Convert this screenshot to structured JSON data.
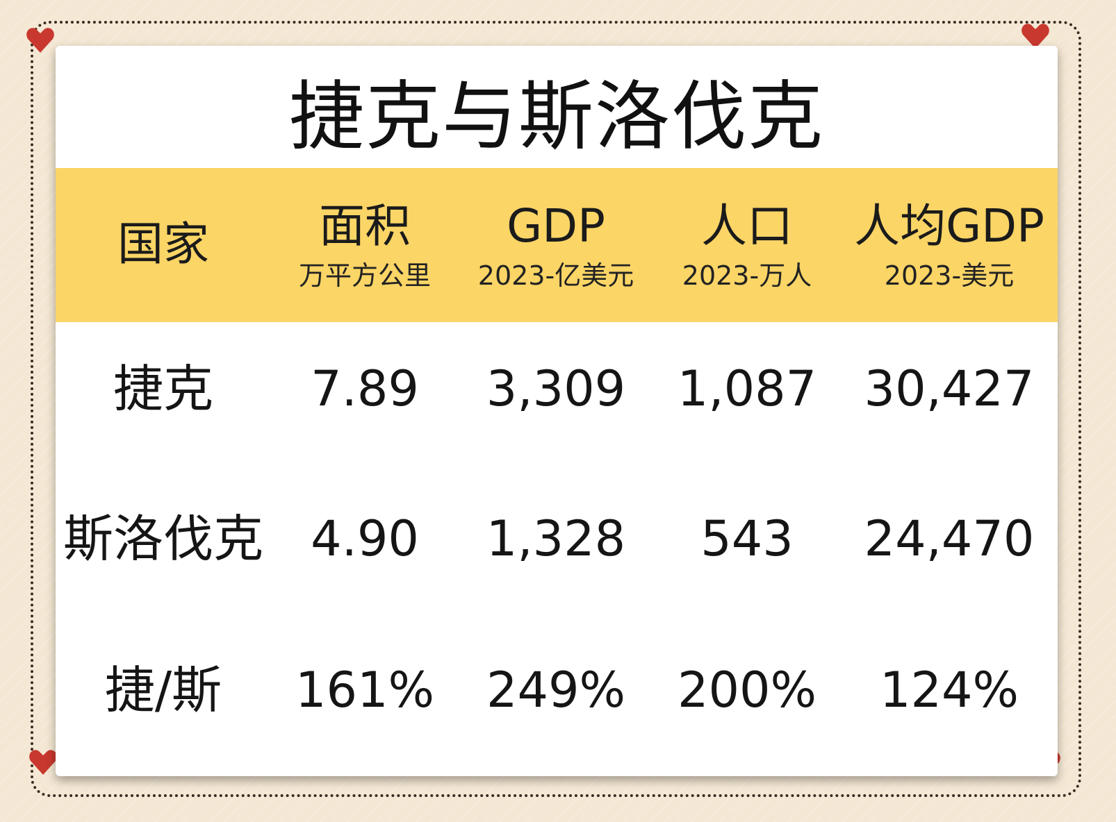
{
  "title": "捷克与斯洛伐克",
  "colors": {
    "background": "#f4e7d3",
    "header_band": "#fbd566",
    "heart": "#c8382f",
    "card": "#ffffff"
  },
  "header": {
    "country": "国家",
    "area": {
      "label": "面积",
      "unit": "万平方公里"
    },
    "gdp": {
      "label": "GDP",
      "unit": "2023-亿美元"
    },
    "population": {
      "label": "人口",
      "unit": "2023-万人"
    },
    "gdp_per_capita": {
      "label": "人均GDP",
      "unit": "2023-美元"
    }
  },
  "rows": [
    {
      "country": "捷克",
      "area": "7.89",
      "gdp": "3,309",
      "population": "1,087",
      "gdp_per_capita": "30,427"
    },
    {
      "country": "斯洛伐克",
      "area": "4.90",
      "gdp": "1,328",
      "population": "543",
      "gdp_per_capita": "24,470"
    },
    {
      "country": "捷/斯",
      "area": "161%",
      "gdp": "249%",
      "population": "200%",
      "gdp_per_capita": "124%"
    }
  ],
  "icons": [
    "heart-icon"
  ]
}
